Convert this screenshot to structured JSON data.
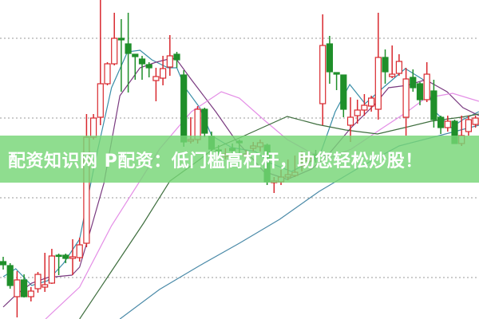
{
  "banner": {
    "text": "配资知识网 P配资：低门槛高杠杆，助您轻松炒股！"
  },
  "colors": {
    "up": "#d8282e",
    "down": "#1f8f2a",
    "grid": "#9a9a9a",
    "banner": "#76d676",
    "ma5": "#3a8ea8",
    "ma10": "#7a3a80",
    "ma20": "#e48ee6",
    "ma30": "#3e6e3e",
    "ma60": "#4a8aa8"
  },
  "chart_data": {
    "type": "candlestick",
    "ylim": [
      0,
      20
    ],
    "grid": true,
    "gridlines_y": [
      17.6,
      12.6,
      7.6,
      2.6
    ],
    "candle_fields": [
      "open",
      "high",
      "low",
      "close"
    ],
    "candles": [
      [
        3.6,
        3.9,
        3.1,
        3.4
      ],
      [
        3.35,
        3.5,
        1.9,
        2.1
      ],
      [
        1.4,
        3.0,
        0.1,
        2.45
      ],
      [
        2.45,
        2.8,
        1.35,
        1.4
      ],
      [
        1.4,
        2.0,
        1.1,
        1.75
      ],
      [
        1.9,
        2.95,
        1.65,
        2.8
      ],
      [
        2.0,
        4.15,
        1.7,
        2.15
      ],
      [
        2.25,
        4.4,
        2.2,
        3.95
      ],
      [
        4.0,
        4.1,
        2.75,
        3.95
      ],
      [
        4.0,
        4.1,
        3.5,
        3.8
      ],
      [
        3.8,
        5.0,
        2.75,
        3.9
      ],
      [
        3.85,
        5.1,
        3.6,
        4.65
      ],
      [
        4.75,
        12.85,
        4.5,
        11.4
      ],
      [
        11.4,
        12.85,
        11.25,
        12.6
      ],
      [
        12.65,
        20,
        12.15,
        14.75
      ],
      [
        14.75,
        16.1,
        14.65,
        16.0
      ],
      [
        16.0,
        19.2,
        15.9,
        17.6
      ],
      [
        17.6,
        18.8,
        14.25,
        17.5
      ],
      [
        17.25,
        19.2,
        14.2,
        16.65
      ],
      [
        16.6,
        16.6,
        15.0,
        16.45
      ],
      [
        16.3,
        16.5,
        15.0,
        16.0
      ],
      [
        15.95,
        16.1,
        15.15,
        15.75
      ],
      [
        14.95,
        15.75,
        13.65,
        15.2
      ],
      [
        15.1,
        16.5,
        14.65,
        15.7
      ],
      [
        15.8,
        17.8,
        15.25,
        16.5
      ],
      [
        16.6,
        16.75,
        15.75,
        16.25
      ],
      [
        15.3,
        15.6,
        10.8,
        11.1
      ],
      [
        11.15,
        12.65,
        11.0,
        11.25
      ],
      [
        11.25,
        13.35,
        11.0,
        13.15
      ],
      [
        13.15,
        13.25,
        11.4,
        11.65
      ],
      [
        11.45,
        11.75,
        10.5,
        10.65
      ],
      [
        10.6,
        10.9,
        10.25,
        10.45
      ],
      [
        10.2,
        10.7,
        10.0,
        10.35
      ],
      [
        10.7,
        11.0,
        10.3,
        10.55
      ],
      [
        11.15,
        11.25,
        10.0,
        11.05
      ],
      [
        10.2,
        10.6,
        10.0,
        10.35
      ],
      [
        10.7,
        11.1,
        10.5,
        10.85
      ],
      [
        10.8,
        11.25,
        10.5,
        11.05
      ],
      [
        10.9,
        11.0,
        8.4,
        8.6
      ],
      [
        8.55,
        8.9,
        7.9,
        8.65
      ],
      [
        8.6,
        9.35,
        8.4,
        8.9
      ],
      [
        8.9,
        10.0,
        8.7,
        9.05
      ],
      [
        9.0,
        10.25,
        8.9,
        9.2
      ],
      [
        9.6,
        10.5,
        9.25,
        9.8
      ],
      [
        9.9,
        10.4,
        9.7,
        10.1
      ],
      [
        10.3,
        10.6,
        9.8,
        10.1
      ],
      [
        13.5,
        19.1,
        12.15,
        17.15
      ],
      [
        17.25,
        17.75,
        14.75,
        15.5
      ],
      [
        15.45,
        15.45,
        14.35,
        15.35
      ],
      [
        15.3,
        15.3,
        12.65,
        13.15
      ],
      [
        12.15,
        13.9,
        11.1,
        12.65
      ],
      [
        12.75,
        13.75,
        12.25,
        13.1
      ],
      [
        13.1,
        14.1,
        12.75,
        13.4
      ],
      [
        13.35,
        14.0,
        13.0,
        13.85
      ],
      [
        13.15,
        19.2,
        12.5,
        16.4
      ],
      [
        16.4,
        16.9,
        14.75,
        15.5
      ],
      [
        15.2,
        17.15,
        15.1,
        15.35
      ],
      [
        15.4,
        16.6,
        15.25,
        16.15
      ],
      [
        12.65,
        15.75,
        11.5,
        15.05
      ],
      [
        15.15,
        15.65,
        14.25,
        14.5
      ],
      [
        14.75,
        14.85,
        13.4,
        13.75
      ],
      [
        13.75,
        16.1,
        13.6,
        15.35
      ],
      [
        14.3,
        15.0,
        12.0,
        12.5
      ],
      [
        12.65,
        12.75,
        11.6,
        12.0
      ],
      [
        12.0,
        12.75,
        11.75,
        12.4
      ],
      [
        12.4,
        12.5,
        11.0,
        11.0
      ],
      [
        11.0,
        12.75,
        10.85,
        11.5
      ],
      [
        11.75,
        12.75,
        11.5,
        12.5
      ],
      [
        12.2,
        12.75,
        12.0,
        12.6
      ]
    ],
    "lines": [
      {
        "key": "ma5",
        "points": [
          [
            0,
            2.65
          ],
          [
            1.8,
            3.15
          ],
          [
            4.1,
            2.1
          ],
          [
            6.4,
            2.4
          ],
          [
            8.7,
            3.5
          ],
          [
            11,
            5
          ],
          [
            13.3,
            10
          ],
          [
            15.6,
            14.5
          ],
          [
            17.9,
            16.75
          ],
          [
            19.7,
            16.85
          ],
          [
            21.4,
            16.25
          ],
          [
            23.7,
            15.75
          ],
          [
            25,
            15.75
          ],
          [
            26.2,
            14.5
          ],
          [
            28.3,
            13.25
          ],
          [
            30,
            11.5
          ],
          [
            32.9,
            10.75
          ],
          [
            36.3,
            10.5
          ],
          [
            38.6,
            9.75
          ],
          [
            41.5,
            9.25
          ],
          [
            43.8,
            9.75
          ],
          [
            45.5,
            10.15
          ],
          [
            47.8,
            13
          ],
          [
            49.9,
            14.7
          ],
          [
            52.1,
            13.5
          ],
          [
            54.7,
            14.5
          ],
          [
            57.9,
            15.7
          ],
          [
            60.5,
            15
          ],
          [
            62.2,
            13
          ],
          [
            64.5,
            12
          ],
          [
            66.2,
            12.5
          ],
          [
            68.5,
            13
          ]
        ]
      },
      {
        "key": "ma10",
        "points": [
          [
            0,
            0.75
          ],
          [
            1.8,
            1.5
          ],
          [
            4.1,
            2.25
          ],
          [
            6.4,
            2.6
          ],
          [
            9.9,
            2.75
          ],
          [
            11,
            3.25
          ],
          [
            12.2,
            5
          ],
          [
            14.5,
            8.5
          ],
          [
            16.8,
            14
          ],
          [
            19.7,
            15.75
          ],
          [
            22,
            16.1
          ],
          [
            24.3,
            16.35
          ],
          [
            25,
            16.25
          ],
          [
            27.1,
            15
          ],
          [
            30.6,
            13
          ],
          [
            33.4,
            11.25
          ],
          [
            35.7,
            10.15
          ],
          [
            37.5,
            9.25
          ],
          [
            40.9,
            8.75
          ],
          [
            44.4,
            9.4
          ],
          [
            46.7,
            10.25
          ],
          [
            50.1,
            12
          ],
          [
            53.6,
            13.5
          ],
          [
            55.5,
            14.5
          ],
          [
            58.2,
            14.65
          ],
          [
            60.8,
            15
          ],
          [
            63.9,
            14.25
          ],
          [
            66.2,
            13.25
          ],
          [
            68.5,
            12.75
          ]
        ]
      },
      {
        "key": "ma20",
        "points": [
          [
            6.1,
            0
          ],
          [
            11,
            2
          ],
          [
            15.6,
            5.85
          ],
          [
            20.2,
            9
          ],
          [
            22.5,
            10.65
          ],
          [
            27.1,
            13
          ],
          [
            31.4,
            14.25
          ],
          [
            34,
            13.85
          ],
          [
            37.5,
            12.5
          ],
          [
            40.9,
            11.25
          ],
          [
            44.4,
            10.4
          ],
          [
            47.2,
            10.15
          ],
          [
            50.1,
            10.65
          ],
          [
            54.7,
            12
          ],
          [
            58.2,
            13
          ],
          [
            60.8,
            13.85
          ],
          [
            64.7,
            14.15
          ],
          [
            68.5,
            13.65
          ]
        ]
      },
      {
        "key": "ma30",
        "points": [
          [
            11,
            0
          ],
          [
            15.6,
            3
          ],
          [
            20.2,
            6
          ],
          [
            24,
            8.65
          ],
          [
            28.3,
            10
          ],
          [
            30.2,
            10.65
          ],
          [
            34,
            11.35
          ],
          [
            40.9,
            12.7
          ],
          [
            45.2,
            12.2
          ],
          [
            49.3,
            11.85
          ],
          [
            53.9,
            11.6
          ],
          [
            57.8,
            12
          ],
          [
            61.6,
            12.4
          ],
          [
            65.9,
            12.65
          ],
          [
            68.5,
            12.85
          ]
        ]
      },
      {
        "key": "ma60",
        "points": [
          [
            16.8,
            0
          ],
          [
            22.5,
            1.85
          ],
          [
            28.3,
            3.35
          ],
          [
            34,
            4.75
          ],
          [
            39.8,
            6.25
          ],
          [
            45.5,
            8
          ],
          [
            51.3,
            9.5
          ],
          [
            57,
            10.85
          ],
          [
            62.8,
            11.5
          ],
          [
            68.5,
            12.15
          ]
        ]
      }
    ]
  }
}
